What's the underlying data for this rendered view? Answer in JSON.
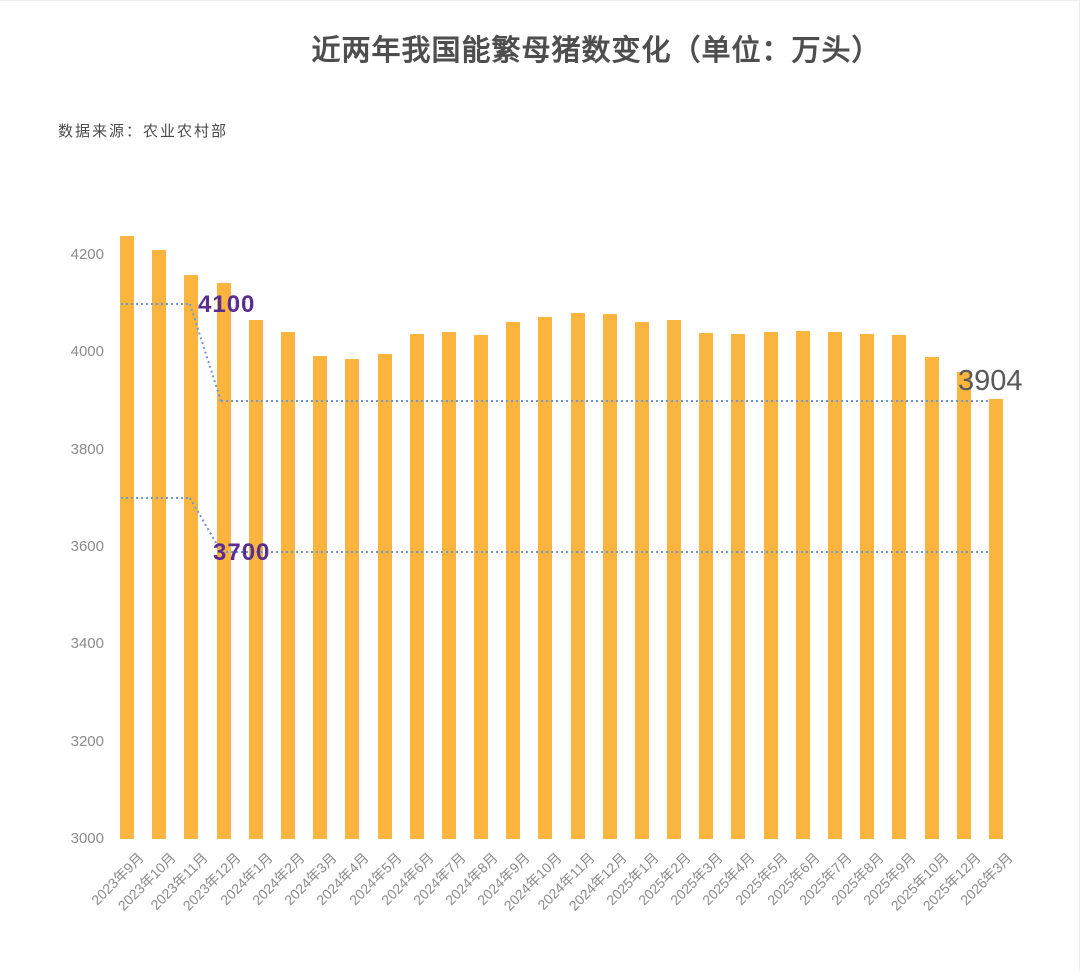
{
  "title": "近两年我国能繁母猪数变化（单位：万头）",
  "source": "数据来源：农业农村部",
  "colors": {
    "background": "#FFFFFF",
    "bar": "#FBB43E",
    "reference_line": "#6E99D6",
    "annotation_text": "#5B2D90",
    "value_label": "#595959",
    "title_text": "#4E4E4E",
    "axis_label": "#8C8C8C",
    "source_text": "#4A4A4A"
  },
  "chart_data": {
    "type": "bar",
    "title": "近两年我国能繁母猪数变化（单位：万头）",
    "xlabel": "",
    "ylabel": "",
    "unit": "万头",
    "grid": false,
    "legend": false,
    "ylim": [
      3000,
      4300
    ],
    "yticks": [
      3000,
      3200,
      3400,
      3600,
      3800,
      4000,
      4200
    ],
    "bar_color": "#FBB43E",
    "categories": [
      "2023年9月",
      "2023年10月",
      "2023年11月",
      "2023年12月",
      "2024年1月",
      "2024年2月",
      "2024年3月",
      "2024年4月",
      "2024年5月",
      "2024年6月",
      "2024年7月",
      "2024年8月",
      "2024年9月",
      "2024年10月",
      "2024年11月",
      "2024年12月",
      "2025年1月",
      "2025年2月",
      "2025年3月",
      "2025年4月",
      "2025年5月",
      "2025年6月",
      "2025年7月",
      "2025年8月",
      "2025年9月",
      "2025年10月",
      "2025年12月",
      "2026年3月"
    ],
    "values": [
      4240,
      4210,
      4158,
      4142,
      4067,
      4042,
      3992,
      3986,
      3996,
      4038,
      4041,
      4036,
      4062,
      4073,
      4080,
      4078,
      4062,
      4066,
      4039,
      4038,
      4042,
      4043,
      4042,
      4038,
      4035,
      3990,
      3960,
      3904
    ],
    "annotations": {
      "reference_lines": [
        {
          "label": "4100",
          "from_level": 4100,
          "to_level": 3900,
          "label_at": "from"
        },
        {
          "label": "3700",
          "from_level": 3700,
          "to_level": 3590,
          "label_at": "to"
        }
      ],
      "value_label": {
        "text": "3904",
        "value": 3904
      }
    }
  }
}
